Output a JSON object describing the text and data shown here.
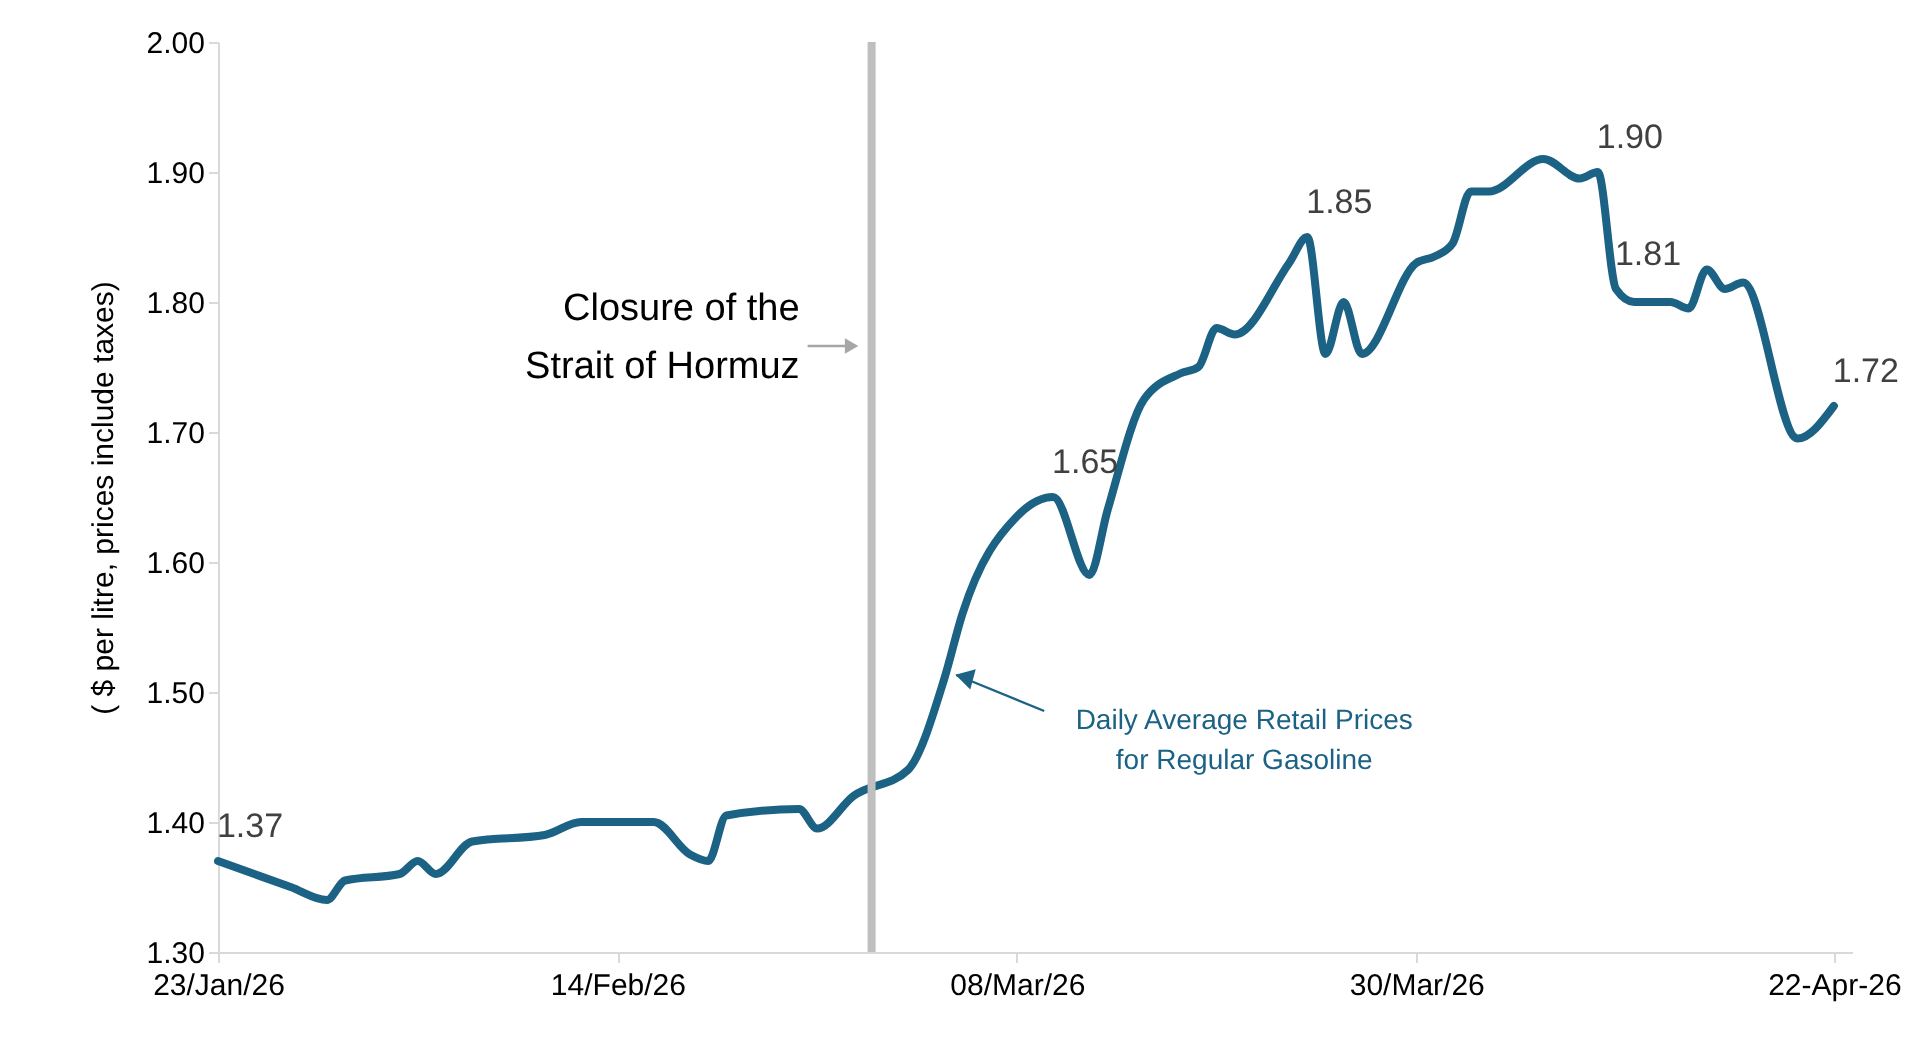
{
  "chart_data": {
    "type": "line",
    "ylabel": "( $ per litre, prices include taxes)",
    "x": [
      "2026-01-23",
      "2026-01-27",
      "2026-01-29",
      "2026-01-30",
      "2026-02-02",
      "2026-02-03",
      "2026-02-04",
      "2026-02-06",
      "2026-02-10",
      "2026-02-12",
      "2026-02-16",
      "2026-02-18",
      "2026-02-19",
      "2026-02-20",
      "2026-02-24",
      "2026-02-25",
      "2026-02-27",
      "2026-03-02",
      "2026-03-04",
      "2026-03-05",
      "2026-03-08",
      "2026-03-10",
      "2026-03-12",
      "2026-03-13",
      "2026-03-15",
      "2026-03-17",
      "2026-03-18",
      "2026-03-19",
      "2026-03-20",
      "2026-03-23",
      "2026-03-24",
      "2026-03-25",
      "2026-03-26",
      "2026-03-27",
      "2026-03-30",
      "2026-03-31",
      "2026-04-01",
      "2026-04-02",
      "2026-04-03",
      "2026-04-06",
      "2026-04-08",
      "2026-04-09",
      "2026-04-10",
      "2026-04-11",
      "2026-04-13",
      "2026-04-14",
      "2026-04-15",
      "2026-04-16",
      "2026-04-17",
      "2026-04-20",
      "2026-04-22"
    ],
    "series": [
      {
        "name": "Daily Average Retail Prices for Regular Gasoline",
        "color": "#1b6284",
        "values": [
          1.37,
          1.35,
          1.34,
          1.355,
          1.36,
          1.37,
          1.36,
          1.385,
          1.39,
          1.4,
          1.4,
          1.375,
          1.37,
          1.405,
          1.41,
          1.395,
          1.42,
          1.44,
          1.51,
          1.56,
          1.635,
          1.65,
          1.59,
          1.64,
          1.725,
          1.745,
          1.75,
          1.78,
          1.775,
          1.83,
          1.85,
          1.76,
          1.8,
          1.76,
          1.83,
          1.835,
          1.845,
          1.885,
          1.885,
          1.91,
          1.895,
          1.9,
          1.81,
          1.8,
          1.8,
          1.795,
          1.825,
          1.81,
          1.815,
          1.695,
          1.72
        ]
      }
    ],
    "xlim": [
      "2026-01-23",
      "2026-04-23"
    ],
    "xticks": [
      {
        "value": "2026-01-23",
        "label": "23/Jan/26"
      },
      {
        "value": "2026-02-14",
        "label": "14/Feb/26"
      },
      {
        "value": "2026-03-08",
        "label": "08/Mar/26"
      },
      {
        "value": "2026-03-30",
        "label": "30/Mar/26"
      },
      {
        "value": "2026-04-22",
        "label": "22-Apr-26"
      }
    ],
    "ylim": [
      1.3,
      2.0
    ],
    "yticks": [
      {
        "value": 1.3,
        "label": "1.30"
      },
      {
        "value": 1.4,
        "label": "1.40"
      },
      {
        "value": 1.5,
        "label": "1.50"
      },
      {
        "value": 1.6,
        "label": "1.60"
      },
      {
        "value": 1.7,
        "label": "1.70"
      },
      {
        "value": 1.8,
        "label": "1.80"
      },
      {
        "value": 1.9,
        "label": "1.90"
      },
      {
        "value": 2.0,
        "label": "2.00"
      }
    ],
    "ref_lines": [
      {
        "axis": "x",
        "value": "2026-02-28",
        "label": "Closure of the Strait of Hormuz",
        "color": "#bfbfbf"
      }
    ],
    "annotations": [
      {
        "text": "1.37",
        "x": "2026-01-23",
        "y": 1.37
      },
      {
        "text": "1.65",
        "x": "2026-03-10",
        "y": 1.65
      },
      {
        "text": "1.85",
        "x": "2026-03-24",
        "y": 1.85
      },
      {
        "text": "1.90",
        "x": "2026-04-09",
        "y": 1.9
      },
      {
        "text": "1.81",
        "x": "2026-04-10",
        "y": 1.81
      },
      {
        "text": "1.72",
        "x": "2026-04-22",
        "y": 1.72
      }
    ],
    "grid": false
  }
}
